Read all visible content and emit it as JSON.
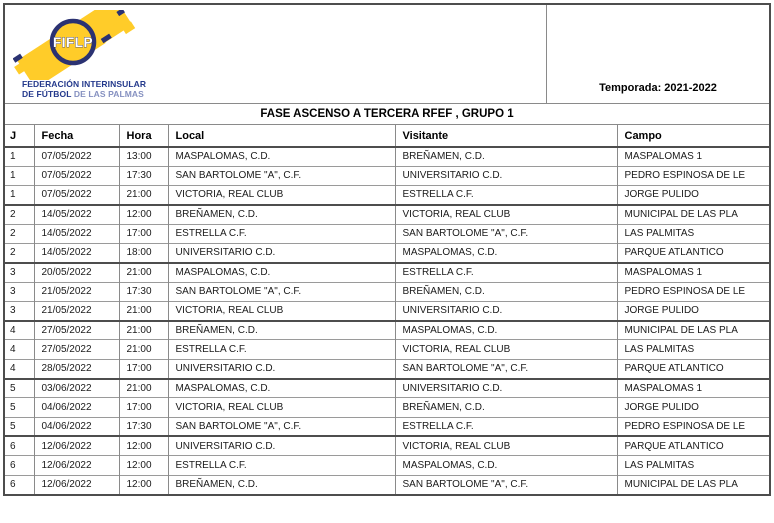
{
  "header": {
    "logo_acronym": "FIFLP",
    "org_name_line1": "FEDERACIÓN INTERINSULAR",
    "org_name_line2_bold": "DE FÚTBOL",
    "org_name_line2_light": " DE LAS PALMAS",
    "season_label": "Temporada: 2021-2022"
  },
  "title": "FASE ASCENSO A TERCERA RFEF , GRUPO 1",
  "colors": {
    "logo_yellow": "#FFCC29",
    "logo_navy": "#2B3272",
    "org_navy": "#24398C",
    "org_light": "#8590C0"
  },
  "table": {
    "columns": [
      "J",
      "Fecha",
      "Hora",
      "Local",
      "Visitante",
      "Campo"
    ],
    "rows": [
      [
        "1",
        "07/05/2022",
        "13:00",
        "MASPALOMAS, C.D.",
        "BREÑAMEN, C.D.",
        "MASPALOMAS 1"
      ],
      [
        "1",
        "07/05/2022",
        "17:30",
        "SAN BARTOLOME \"A\", C.F.",
        "UNIVERSITARIO C.D.",
        "PEDRO ESPINOSA DE LE"
      ],
      [
        "1",
        "07/05/2022",
        "21:00",
        "VICTORIA, REAL CLUB",
        "ESTRELLA C.F.",
        "JORGE PULIDO"
      ],
      [
        "2",
        "14/05/2022",
        "12:00",
        "BREÑAMEN, C.D.",
        "VICTORIA, REAL CLUB",
        "MUNICIPAL DE LAS PLA"
      ],
      [
        "2",
        "14/05/2022",
        "17:00",
        "ESTRELLA C.F.",
        "SAN BARTOLOME \"A\", C.F.",
        "LAS PALMITAS"
      ],
      [
        "2",
        "14/05/2022",
        "18:00",
        "UNIVERSITARIO C.D.",
        "MASPALOMAS, C.D.",
        "PARQUE ATLANTICO"
      ],
      [
        "3",
        "20/05/2022",
        "21:00",
        "MASPALOMAS, C.D.",
        "ESTRELLA C.F.",
        "MASPALOMAS 1"
      ],
      [
        "3",
        "21/05/2022",
        "17:30",
        "SAN BARTOLOME \"A\", C.F.",
        "BREÑAMEN, C.D.",
        "PEDRO ESPINOSA DE LE"
      ],
      [
        "3",
        "21/05/2022",
        "21:00",
        "VICTORIA, REAL CLUB",
        "UNIVERSITARIO C.D.",
        "JORGE PULIDO"
      ],
      [
        "4",
        "27/05/2022",
        "21:00",
        "BREÑAMEN, C.D.",
        "MASPALOMAS, C.D.",
        "MUNICIPAL DE LAS PLA"
      ],
      [
        "4",
        "27/05/2022",
        "21:00",
        "ESTRELLA C.F.",
        "VICTORIA, REAL CLUB",
        "LAS PALMITAS"
      ],
      [
        "4",
        "28/05/2022",
        "17:00",
        "UNIVERSITARIO C.D.",
        "SAN BARTOLOME \"A\", C.F.",
        "PARQUE ATLANTICO"
      ],
      [
        "5",
        "03/06/2022",
        "21:00",
        "MASPALOMAS, C.D.",
        "UNIVERSITARIO C.D.",
        "MASPALOMAS 1"
      ],
      [
        "5",
        "04/06/2022",
        "17:00",
        "VICTORIA, REAL CLUB",
        "BREÑAMEN, C.D.",
        "JORGE PULIDO"
      ],
      [
        "5",
        "04/06/2022",
        "17:30",
        "SAN BARTOLOME \"A\", C.F.",
        "ESTRELLA C.F.",
        "PEDRO ESPINOSA DE LE"
      ],
      [
        "6",
        "12/06/2022",
        "12:00",
        "UNIVERSITARIO C.D.",
        "VICTORIA, REAL CLUB",
        "PARQUE ATLANTICO"
      ],
      [
        "6",
        "12/06/2022",
        "12:00",
        "ESTRELLA C.F.",
        "MASPALOMAS, C.D.",
        "LAS PALMITAS"
      ],
      [
        "6",
        "12/06/2022",
        "12:00",
        "BREÑAMEN, C.D.",
        "SAN BARTOLOME \"A\", C.F.",
        "MUNICIPAL DE LAS PLA"
      ]
    ]
  }
}
